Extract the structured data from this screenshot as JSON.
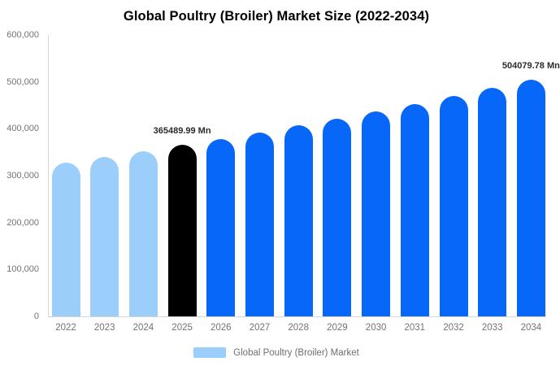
{
  "title": "Global Poultry (Broiler) Market Size (2022-2034)",
  "chart_data": {
    "type": "bar",
    "title": "Global Poultry (Broiler) Market Size (2022-2034)",
    "xlabel": "",
    "ylabel": "",
    "ylim": [
      0,
      600000
    ],
    "grid": false,
    "categories": [
      "2022",
      "2023",
      "2024",
      "2025",
      "2026",
      "2027",
      "2028",
      "2029",
      "2030",
      "2031",
      "2032",
      "2033",
      "2034"
    ],
    "values": [
      327900,
      339900,
      352300,
      365489.99,
      378800,
      392600,
      406900,
      421700,
      437000,
      453000,
      469400,
      486500,
      504079.78
    ],
    "bar_roles": [
      "historical",
      "historical",
      "historical",
      "base_year",
      "forecast",
      "forecast",
      "forecast",
      "forecast",
      "forecast",
      "forecast",
      "forecast",
      "forecast",
      "forecast"
    ],
    "colors": {
      "historical": "#9CCEFB",
      "base_year": "#000000",
      "forecast": "#0667F9"
    },
    "yticks": [
      {
        "label": "600,000",
        "value": 600000
      },
      {
        "label": "500,000",
        "value": 500000
      },
      {
        "label": "400,000",
        "value": 400000
      },
      {
        "label": "300,000",
        "value": 300000
      },
      {
        "label": "200,000",
        "value": 200000
      },
      {
        "label": "100,000",
        "value": 100000
      },
      {
        "label": "0",
        "value": 0
      }
    ],
    "annotations": [
      {
        "category": "2025",
        "text": "365489.99 Mn"
      },
      {
        "category": "2034",
        "text": "504079.78 Mn"
      }
    ],
    "legend": {
      "position": "bottom",
      "items": [
        {
          "label": "Global Poultry (Broiler) Market",
          "swatch_color": "#9CCEFB"
        }
      ]
    }
  }
}
